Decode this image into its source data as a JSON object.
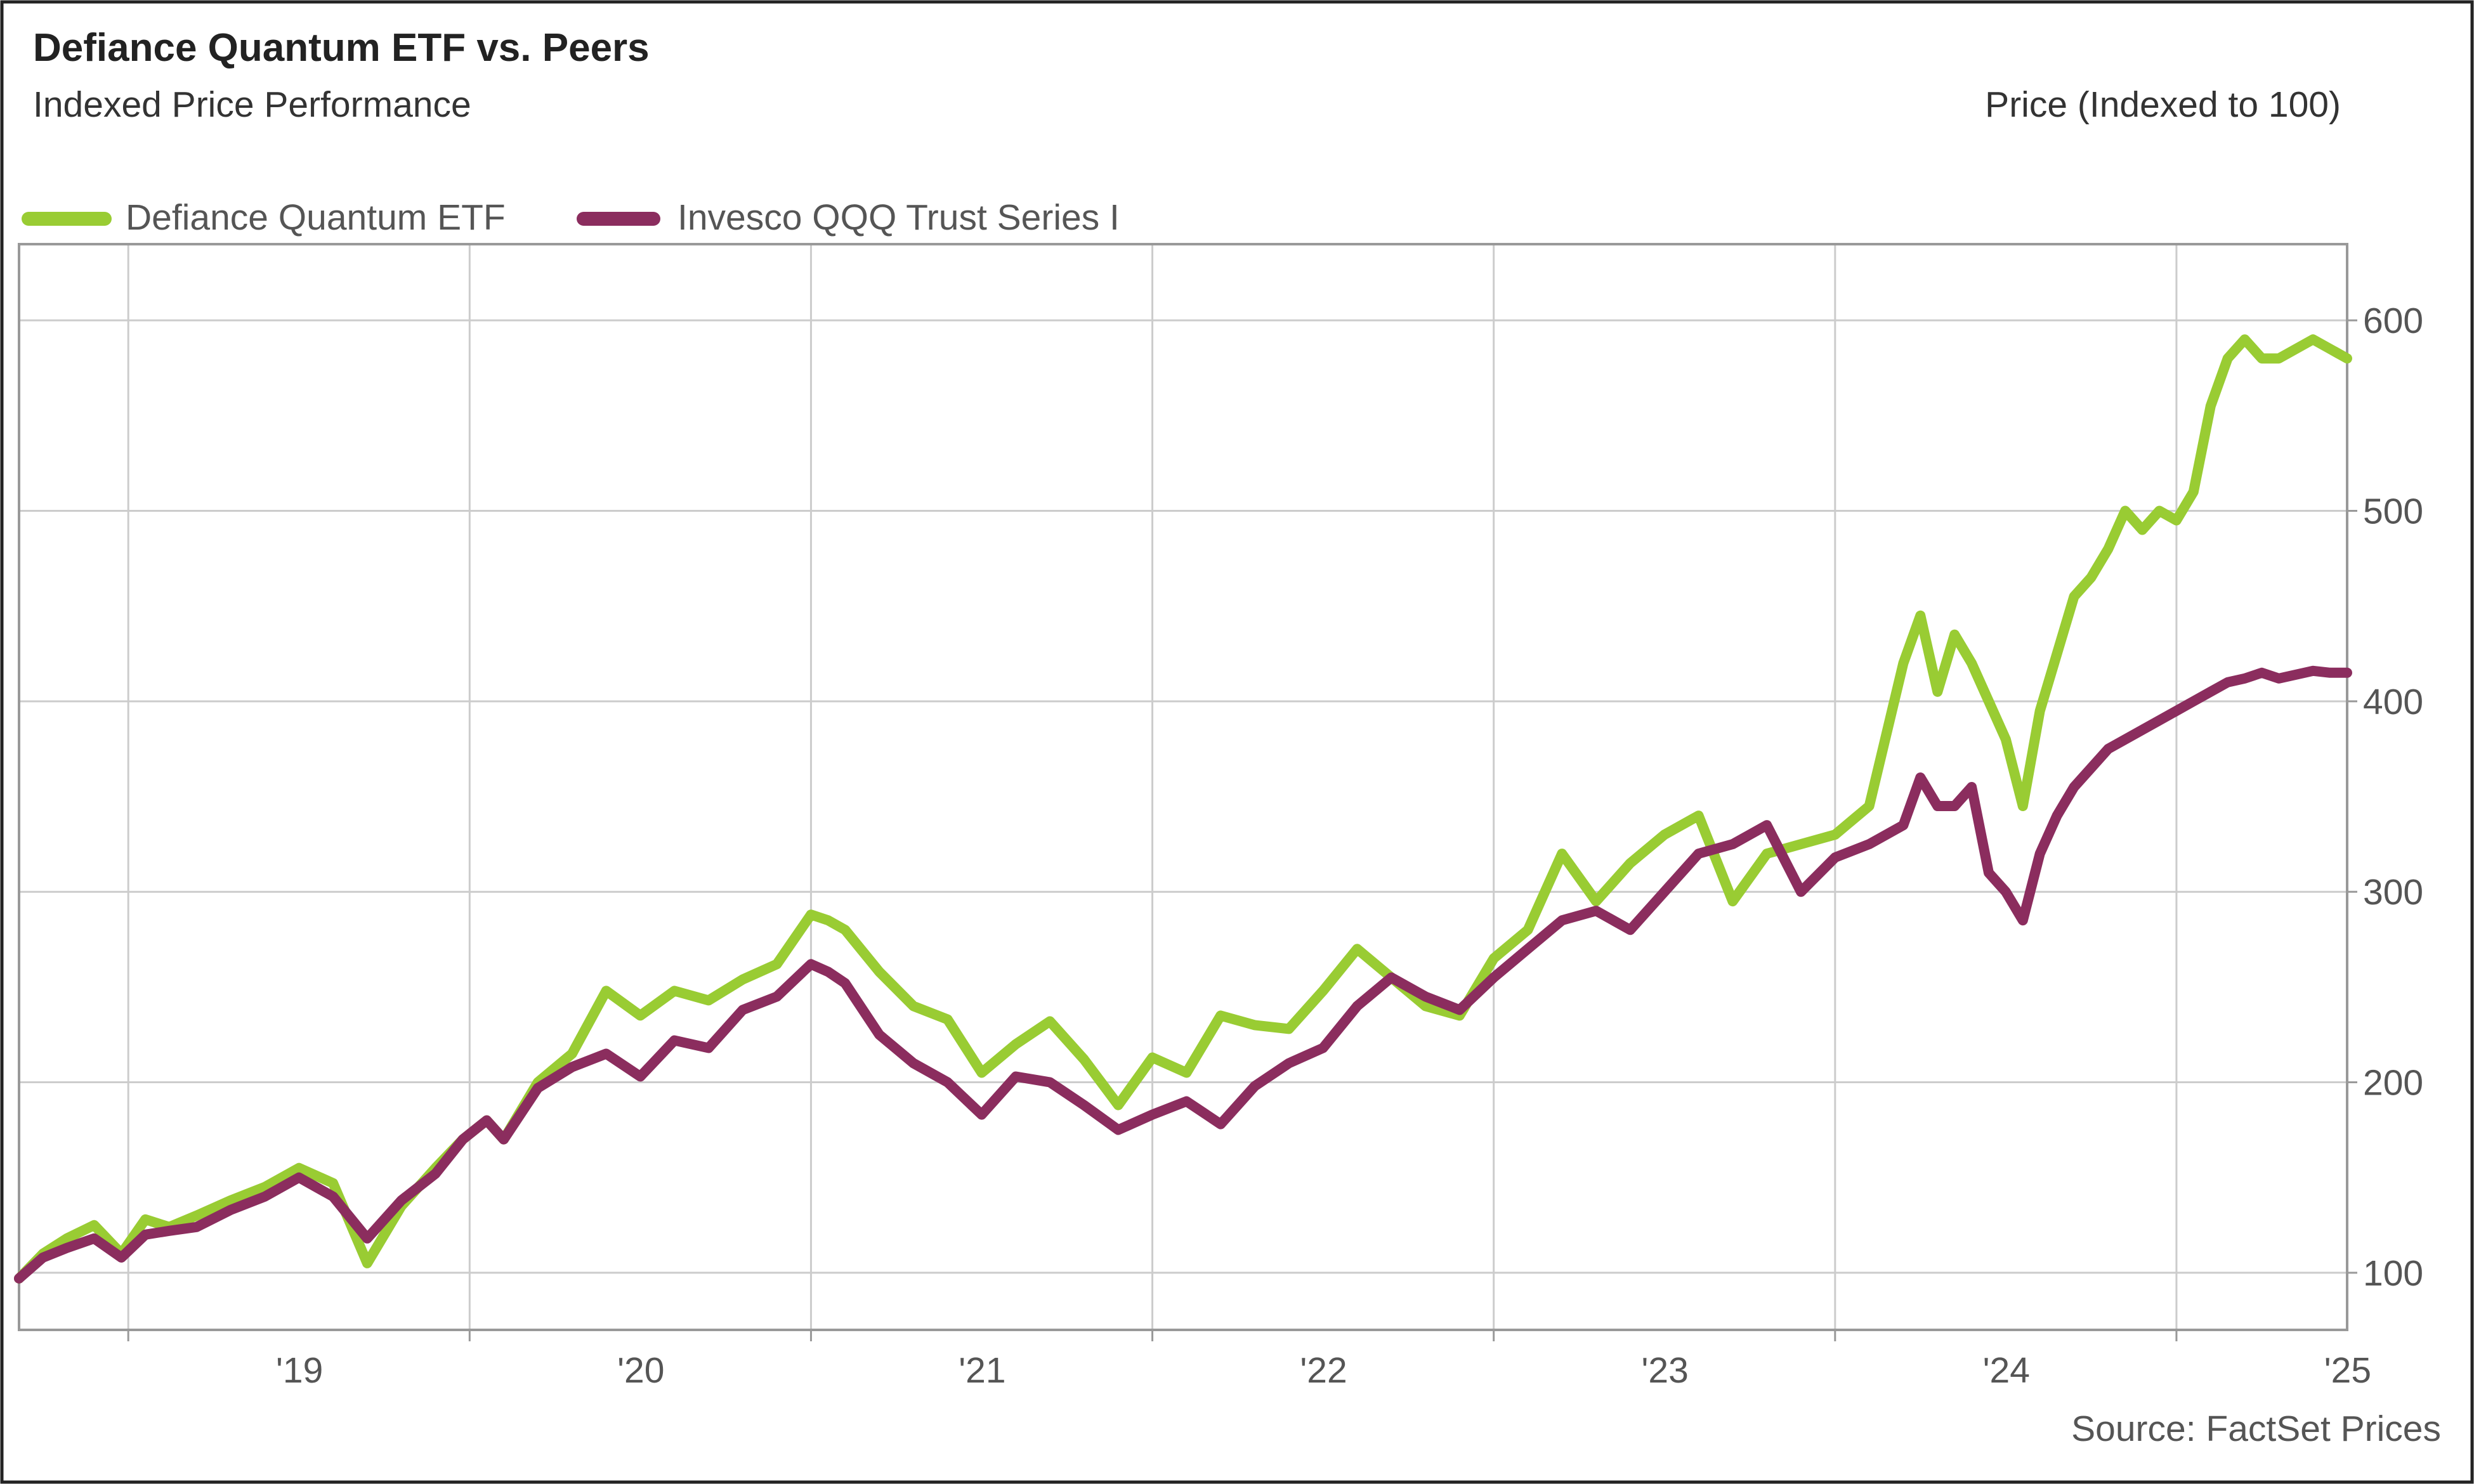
{
  "chart_data": {
    "type": "line",
    "title": "Defiance Quantum ETF vs. Peers",
    "subtitle": "Indexed Price Performance",
    "ylabel": "Price (Indexed to 100)",
    "source": "Source: FactSet Prices",
    "ylim": [
      70,
      640
    ],
    "yticks": [
      100,
      200,
      300,
      400,
      500,
      600
    ],
    "xlim": [
      2018.68,
      2025.5
    ],
    "xticks": [
      {
        "label": "'19",
        "year": 2019
      },
      {
        "label": "'20",
        "year": 2020
      },
      {
        "label": "'21",
        "year": 2021
      },
      {
        "label": "'22",
        "year": 2022
      },
      {
        "label": "'23",
        "year": 2023
      },
      {
        "label": "'24",
        "year": 2024
      },
      {
        "label": "'25",
        "year": 2025
      }
    ],
    "gridlines": true,
    "legend_position": "top-left",
    "series": [
      {
        "name": "Defiance Quantum ETF",
        "color": "#99cc33",
        "x": [
          2018.68,
          2018.75,
          2018.82,
          2018.9,
          2018.98,
          2019.05,
          2019.12,
          2019.2,
          2019.3,
          2019.4,
          2019.5,
          2019.6,
          2019.7,
          2019.8,
          2019.9,
          2019.98,
          2020.05,
          2020.1,
          2020.2,
          2020.3,
          2020.4,
          2020.5,
          2020.6,
          2020.7,
          2020.8,
          2020.9,
          2021.0,
          2021.05,
          2021.1,
          2021.2,
          2021.3,
          2021.4,
          2021.5,
          2021.6,
          2021.7,
          2021.8,
          2021.9,
          2022.0,
          2022.1,
          2022.2,
          2022.3,
          2022.4,
          2022.5,
          2022.6,
          2022.7,
          2022.8,
          2022.9,
          2023.0,
          2023.1,
          2023.2,
          2023.3,
          2023.4,
          2023.5,
          2023.6,
          2023.7,
          2023.8,
          2023.9,
          2024.0,
          2024.1,
          2024.2,
          2024.25,
          2024.3,
          2024.35,
          2024.4,
          2024.45,
          2024.5,
          2024.55,
          2024.6,
          2024.65,
          2024.7,
          2024.75,
          2024.8,
          2024.85,
          2024.9,
          2024.95,
          2025.0,
          2025.05,
          2025.1,
          2025.15,
          2025.2,
          2025.25,
          2025.3,
          2025.35,
          2025.4,
          2025.45,
          2025.5
        ],
        "values": [
          97,
          110,
          118,
          125,
          110,
          128,
          124,
          130,
          138,
          145,
          155,
          147,
          105,
          135,
          155,
          170,
          180,
          170,
          200,
          215,
          248,
          235,
          248,
          243,
          254,
          262,
          288,
          285,
          280,
          258,
          240,
          233,
          205,
          220,
          232,
          212,
          188,
          213,
          205,
          235,
          230,
          228,
          248,
          270,
          255,
          240,
          235,
          265,
          280,
          320,
          295,
          315,
          330,
          340,
          295,
          320,
          325,
          330,
          345,
          420,
          445,
          405,
          435,
          420,
          400,
          380,
          345,
          395,
          425,
          455,
          465,
          480,
          500,
          490,
          500,
          495,
          510,
          555,
          580,
          590,
          580,
          580,
          585,
          590,
          585,
          580
        ]
      },
      {
        "name": "Invesco QQQ Trust Series I",
        "color": "#8b2d5e",
        "x": [
          2018.68,
          2018.75,
          2018.82,
          2018.9,
          2018.98,
          2019.05,
          2019.12,
          2019.2,
          2019.3,
          2019.4,
          2019.5,
          2019.6,
          2019.7,
          2019.8,
          2019.9,
          2019.98,
          2020.05,
          2020.1,
          2020.2,
          2020.3,
          2020.4,
          2020.5,
          2020.6,
          2020.7,
          2020.8,
          2020.9,
          2021.0,
          2021.05,
          2021.1,
          2021.2,
          2021.3,
          2021.4,
          2021.5,
          2021.6,
          2021.7,
          2021.8,
          2021.9,
          2022.0,
          2022.1,
          2022.2,
          2022.3,
          2022.4,
          2022.5,
          2022.6,
          2022.7,
          2022.8,
          2022.9,
          2023.0,
          2023.1,
          2023.2,
          2023.3,
          2023.4,
          2023.5,
          2023.6,
          2023.7,
          2023.8,
          2023.9,
          2024.0,
          2024.1,
          2024.2,
          2024.25,
          2024.3,
          2024.35,
          2024.4,
          2024.45,
          2024.5,
          2024.55,
          2024.6,
          2024.65,
          2024.7,
          2024.75,
          2024.8,
          2024.85,
          2024.9,
          2024.95,
          2025.0,
          2025.05,
          2025.1,
          2025.15,
          2025.2,
          2025.25,
          2025.3,
          2025.35,
          2025.4,
          2025.45,
          2025.5
        ],
        "values": [
          97,
          108,
          113,
          118,
          108,
          120,
          122,
          124,
          133,
          140,
          150,
          140,
          118,
          138,
          152,
          170,
          180,
          170,
          197,
          208,
          215,
          203,
          222,
          218,
          238,
          245,
          262,
          258,
          252,
          225,
          210,
          200,
          183,
          203,
          200,
          188,
          175,
          183,
          190,
          178,
          198,
          210,
          218,
          240,
          255,
          245,
          238,
          255,
          270,
          285,
          290,
          280,
          300,
          320,
          325,
          335,
          300,
          318,
          325,
          335,
          360,
          345,
          345,
          355,
          310,
          300,
          285,
          320,
          340,
          355,
          365,
          375,
          380,
          385,
          390,
          395,
          400,
          405,
          410,
          412,
          415,
          412,
          414,
          416,
          415,
          415
        ]
      }
    ]
  }
}
